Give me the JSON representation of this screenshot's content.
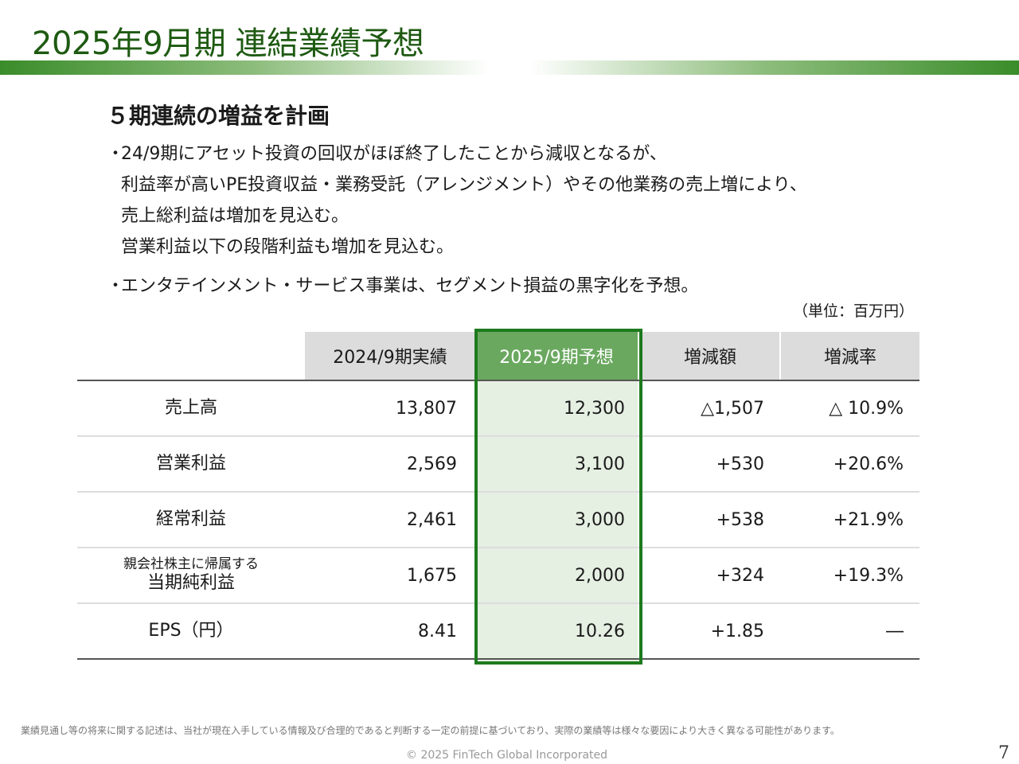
{
  "slide": {
    "title": "2025年9月期 連結業績予想",
    "headline": "５期連続の増益を計画",
    "bullet_marker": "・",
    "bullets": [
      {
        "lines": [
          "24/9期にアセット投資の回収がほぼ終了したことから減収となるが、",
          "利益率が高いPE投資収益・業務受託（アレンジメント）やその他業務の売上増により、",
          "売上総利益は増加を見込む。",
          "営業利益以下の段階利益も増加を見込む。"
        ]
      },
      {
        "lines": [
          "エンタテインメント・サービス事業は、セグメント損益の黒字化を予想。"
        ]
      }
    ],
    "unit_note": "（単位：百万円）",
    "footnote": "業績見通し等の将来に関する記述は、当社が現在入手している情報及び合理的であると判断する一定の前提に基づいており、実際の業績等は様々な要因により大きく異なる可能性があります。",
    "copyright": "© 2025 FinTech Global Incorporated",
    "page_number": "7"
  },
  "table": {
    "headers": [
      "",
      "2024/9期実績",
      "2025/9期予想",
      "増減額",
      "増減率"
    ],
    "rows": [
      {
        "label_small": "",
        "label": "売上高",
        "prev": "13,807",
        "forecast": "12,300",
        "diff": "△1,507",
        "rate": "△ 10.9%"
      },
      {
        "label_small": "",
        "label": "営業利益",
        "prev": "2,569",
        "forecast": "3,100",
        "diff": "+530",
        "rate": "+20.6%"
      },
      {
        "label_small": "",
        "label": "経常利益",
        "prev": "2,461",
        "forecast": "3,000",
        "diff": "+538",
        "rate": "+21.9%"
      },
      {
        "label_small": "親会社株主に帰属する",
        "label": "当期純利益",
        "prev": "1,675",
        "forecast": "2,000",
        "diff": "+324",
        "rate": "+19.3%"
      },
      {
        "label_small": "",
        "label": "EPS（円）",
        "prev": "8.41",
        "forecast": "10.26",
        "diff": "+1.85",
        "rate": "―"
      }
    ]
  },
  "colors": {
    "title": "#1e5a12",
    "forecast_header": "#6aa85f",
    "forecast_tint": "#e5efe2",
    "forecast_border": "#1e7a1e",
    "header_bg": "#dcdcdc"
  }
}
